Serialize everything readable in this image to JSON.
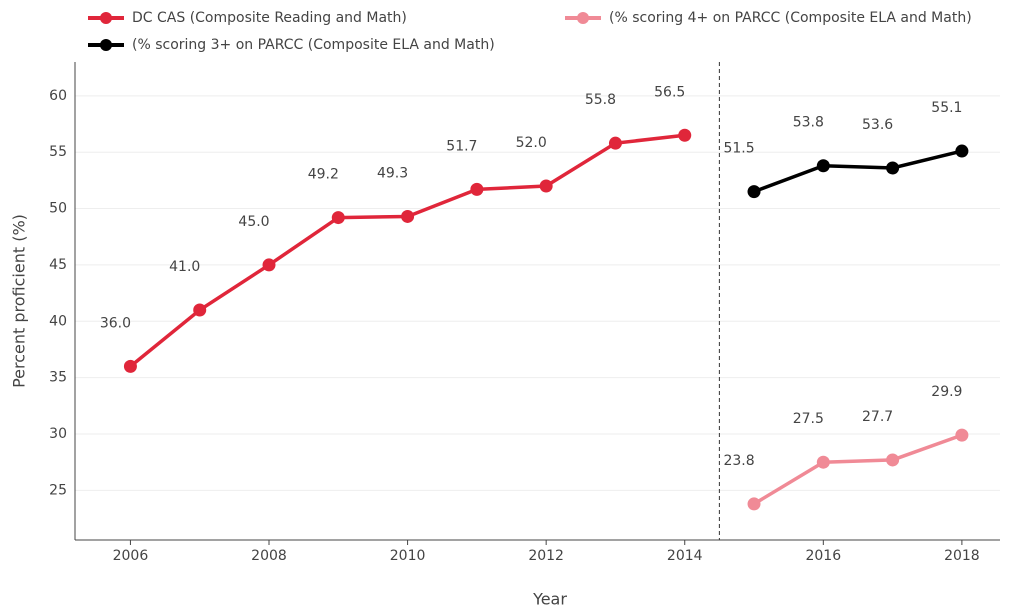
{
  "chart_data": {
    "type": "line",
    "xlabel": "Year",
    "ylabel": "Percent proficient (%)",
    "xlim": [
      2005.2,
      2018.55
    ],
    "xticks": [
      2006,
      2008,
      2010,
      2012,
      2014,
      2016,
      2018
    ],
    "ylim": [
      20.6,
      63
    ],
    "yticks": [
      25,
      30,
      35,
      40,
      45,
      50,
      55,
      60
    ],
    "grid": true,
    "legend": "top",
    "series": [
      {
        "name": "DC CAS (Composite Reading and Math)",
        "color": "#e0263a",
        "x": [
          2006,
          2007,
          2008,
          2009,
          2010,
          2011,
          2012,
          2013,
          2014
        ],
        "values": [
          36.0,
          41.0,
          45.0,
          49.2,
          49.3,
          51.7,
          52.0,
          55.8,
          56.5
        ],
        "value_labels": [
          "36.0",
          "41.0",
          "45.0",
          "49.2",
          "49.3",
          "51.7",
          "52.0",
          "55.8",
          "56.5"
        ]
      },
      {
        "name": "(% scoring 4+ on PARCC (Composite ELA and Math)",
        "color": "#f08a96",
        "x": [
          2015,
          2016,
          2017,
          2018
        ],
        "values": [
          23.8,
          27.5,
          27.7,
          29.9
        ],
        "value_labels": [
          "23.8",
          "27.5",
          "27.7",
          "29.9"
        ]
      },
      {
        "name": "(% scoring 3+ on PARCC (Composite ELA and Math)",
        "color": "#000000",
        "x": [
          2015,
          2016,
          2017,
          2018
        ],
        "values": [
          51.5,
          53.8,
          53.6,
          55.1
        ],
        "value_labels": [
          "51.5",
          "53.8",
          "53.6",
          "55.1"
        ]
      }
    ]
  }
}
